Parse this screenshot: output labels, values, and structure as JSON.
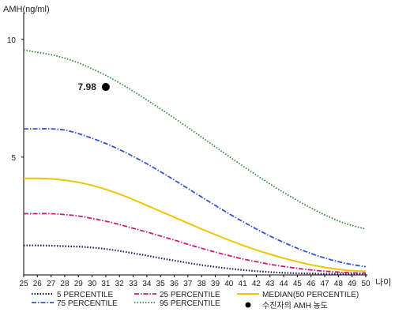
{
  "chart_data": {
    "type": "line",
    "ylabel": "AMH(ng/ml)",
    "xlabel": "나이",
    "xlim": [
      25,
      50
    ],
    "ylim": [
      0,
      11
    ],
    "x_ticks": [
      "25",
      "26",
      "27",
      "28",
      "29",
      "30",
      "31",
      "32",
      "33",
      "34",
      "35",
      "36",
      "37",
      "38",
      "39",
      "40",
      "41",
      "42",
      "43",
      "44",
      "45",
      "46",
      "47",
      "48",
      "49",
      "50"
    ],
    "y_ticks": [
      "5",
      "10"
    ],
    "grid": false,
    "legend_position": "bottom",
    "x": [
      25,
      26,
      27,
      28,
      29,
      30,
      31,
      32,
      33,
      34,
      35,
      36,
      37,
      38,
      39,
      40,
      41,
      42,
      43,
      44,
      45,
      46,
      47,
      48,
      49,
      50
    ],
    "series": [
      {
        "name": "5 PERCENTILE",
        "color": "#1a1a66",
        "dash": "1.5,2",
        "width": 2.2,
        "values": [
          1.25,
          1.25,
          1.24,
          1.22,
          1.2,
          1.16,
          1.1,
          1.02,
          0.92,
          0.82,
          0.71,
          0.61,
          0.51,
          0.42,
          0.34,
          0.27,
          0.21,
          0.16,
          0.12,
          0.09,
          0.07,
          0.06,
          0.05,
          0.05,
          0.05,
          0.05
        ]
      },
      {
        "name": "25 PERCENTILE",
        "color": "#cc1a7a",
        "dash": "6,2,1.5,2",
        "width": 1.8,
        "values": [
          2.6,
          2.6,
          2.6,
          2.56,
          2.5,
          2.4,
          2.28,
          2.14,
          1.98,
          1.82,
          1.65,
          1.48,
          1.3,
          1.13,
          0.97,
          0.82,
          0.68,
          0.56,
          0.45,
          0.36,
          0.28,
          0.21,
          0.16,
          0.12,
          0.09,
          0.08
        ]
      },
      {
        "name": "MEDIAN(50 PERCENTILE)",
        "color": "#f2c400",
        "dash": "",
        "width": 2,
        "values": [
          4.1,
          4.1,
          4.08,
          4.02,
          3.93,
          3.8,
          3.63,
          3.43,
          3.2,
          2.95,
          2.7,
          2.45,
          2.2,
          1.95,
          1.71,
          1.48,
          1.26,
          1.06,
          0.88,
          0.71,
          0.56,
          0.43,
          0.32,
          0.24,
          0.18,
          0.15
        ]
      },
      {
        "name": "75 PERCENTILE",
        "color": "#3355cc",
        "dash": "6,2,1.5,2",
        "width": 1.8,
        "values": [
          6.2,
          6.2,
          6.2,
          6.15,
          6.0,
          5.8,
          5.58,
          5.32,
          5.03,
          4.72,
          4.38,
          4.03,
          3.67,
          3.31,
          2.95,
          2.6,
          2.27,
          1.95,
          1.65,
          1.38,
          1.13,
          0.91,
          0.72,
          0.56,
          0.44,
          0.35
        ]
      },
      {
        "name": "95 PERCENTILE",
        "color": "#2e8b3e",
        "dash": "1.5,2",
        "width": 1.8,
        "values": [
          9.55,
          9.45,
          9.35,
          9.2,
          9.0,
          8.75,
          8.47,
          8.15,
          7.8,
          7.43,
          7.05,
          6.66,
          6.26,
          5.85,
          5.44,
          5.03,
          4.63,
          4.24,
          3.86,
          3.5,
          3.16,
          2.84,
          2.55,
          2.29,
          2.1,
          1.95
        ]
      }
    ],
    "marker": {
      "name": "수진자의 AMH 농도",
      "x": 31,
      "y": 7.98,
      "label": "7.98",
      "color": "#000000"
    }
  }
}
